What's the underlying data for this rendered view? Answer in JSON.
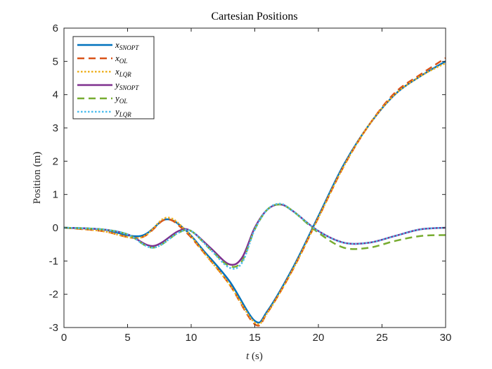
{
  "chart_data": {
    "type": "line",
    "title": "Cartesian Positions",
    "xlabel_var": "t",
    "xlabel_unit": " (s)",
    "ylabel": "Position (m)",
    "xlim": [
      0,
      30
    ],
    "ylim": [
      -3,
      6
    ],
    "xticks": [
      0,
      5,
      10,
      15,
      20,
      25,
      30
    ],
    "yticks": [
      -3,
      -2,
      -1,
      0,
      1,
      2,
      3,
      4,
      5,
      6
    ],
    "grid": false,
    "legend_position": "top-left",
    "series": [
      {
        "name": "x_SNOPT",
        "base": "x",
        "sub": "SNOPT",
        "color": "#0072BD",
        "dash": "solid",
        "x": [
          0,
          3,
          6,
          8,
          9.5,
          11,
          13,
          15,
          16,
          18,
          20,
          22,
          24,
          26,
          28,
          30
        ],
        "y": [
          0,
          -0.05,
          -0.25,
          0.25,
          -0.05,
          -0.7,
          -1.6,
          -2.8,
          -2.5,
          -1.2,
          0.35,
          1.9,
          3.1,
          4.0,
          4.55,
          5.0
        ]
      },
      {
        "name": "x_OL",
        "base": "x",
        "sub": "OL",
        "color": "#D95319",
        "dash": "dashed",
        "x": [
          0,
          3,
          6,
          8,
          9.5,
          11,
          13,
          15,
          16,
          18,
          20,
          22,
          24,
          26,
          28,
          30
        ],
        "y": [
          0,
          -0.1,
          -0.3,
          0.25,
          -0.1,
          -0.75,
          -1.7,
          -2.9,
          -2.55,
          -1.25,
          0.3,
          1.85,
          3.1,
          4.05,
          4.6,
          5.1
        ]
      },
      {
        "name": "x_LQR",
        "base": "x",
        "sub": "LQR",
        "color": "#EDB120",
        "dash": "dotted",
        "x": [
          0,
          3,
          6,
          8,
          9.5,
          11,
          13,
          15,
          16,
          18,
          20,
          22,
          24,
          26,
          28,
          30
        ],
        "y": [
          0,
          -0.1,
          -0.3,
          0.3,
          -0.05,
          -0.75,
          -1.7,
          -2.85,
          -2.55,
          -1.25,
          0.3,
          1.85,
          3.1,
          4.0,
          4.55,
          4.95
        ]
      },
      {
        "name": "y_SNOPT",
        "base": "y",
        "sub": "SNOPT",
        "color": "#7E2F8E",
        "dash": "solid",
        "x": [
          0,
          3,
          5,
          7,
          9,
          10,
          11.5,
          13,
          14,
          15,
          16,
          17,
          18,
          20,
          22,
          24,
          26,
          28,
          30
        ],
        "y": [
          0,
          -0.05,
          -0.2,
          -0.55,
          -0.1,
          -0.1,
          -0.6,
          -1.1,
          -0.9,
          0.0,
          0.55,
          0.7,
          0.5,
          -0.1,
          -0.45,
          -0.45,
          -0.25,
          -0.05,
          0.0
        ]
      },
      {
        "name": "y_OL",
        "base": "y",
        "sub": "OL",
        "color": "#77AC30",
        "dash": "dashed",
        "x": [
          0,
          3,
          5,
          7,
          9,
          10,
          11.5,
          13,
          14,
          15,
          16,
          17,
          18,
          20,
          22,
          24,
          26,
          28,
          30
        ],
        "y": [
          0,
          -0.05,
          -0.2,
          -0.6,
          -0.15,
          -0.1,
          -0.65,
          -1.15,
          -1.0,
          -0.05,
          0.55,
          0.7,
          0.5,
          -0.15,
          -0.6,
          -0.6,
          -0.4,
          -0.25,
          -0.22
        ]
      },
      {
        "name": "y_LQR",
        "base": "y",
        "sub": "LQR",
        "color": "#4DBEEE",
        "dash": "dotted",
        "x": [
          0,
          3,
          5,
          7,
          9,
          10,
          11.5,
          13,
          14,
          15,
          16,
          17,
          18,
          20,
          22,
          24,
          26,
          28,
          30
        ],
        "y": [
          0,
          -0.05,
          -0.2,
          -0.6,
          -0.15,
          -0.1,
          -0.65,
          -1.2,
          -1.05,
          -0.05,
          0.55,
          0.72,
          0.5,
          -0.1,
          -0.45,
          -0.45,
          -0.25,
          -0.05,
          0.0
        ]
      }
    ]
  }
}
